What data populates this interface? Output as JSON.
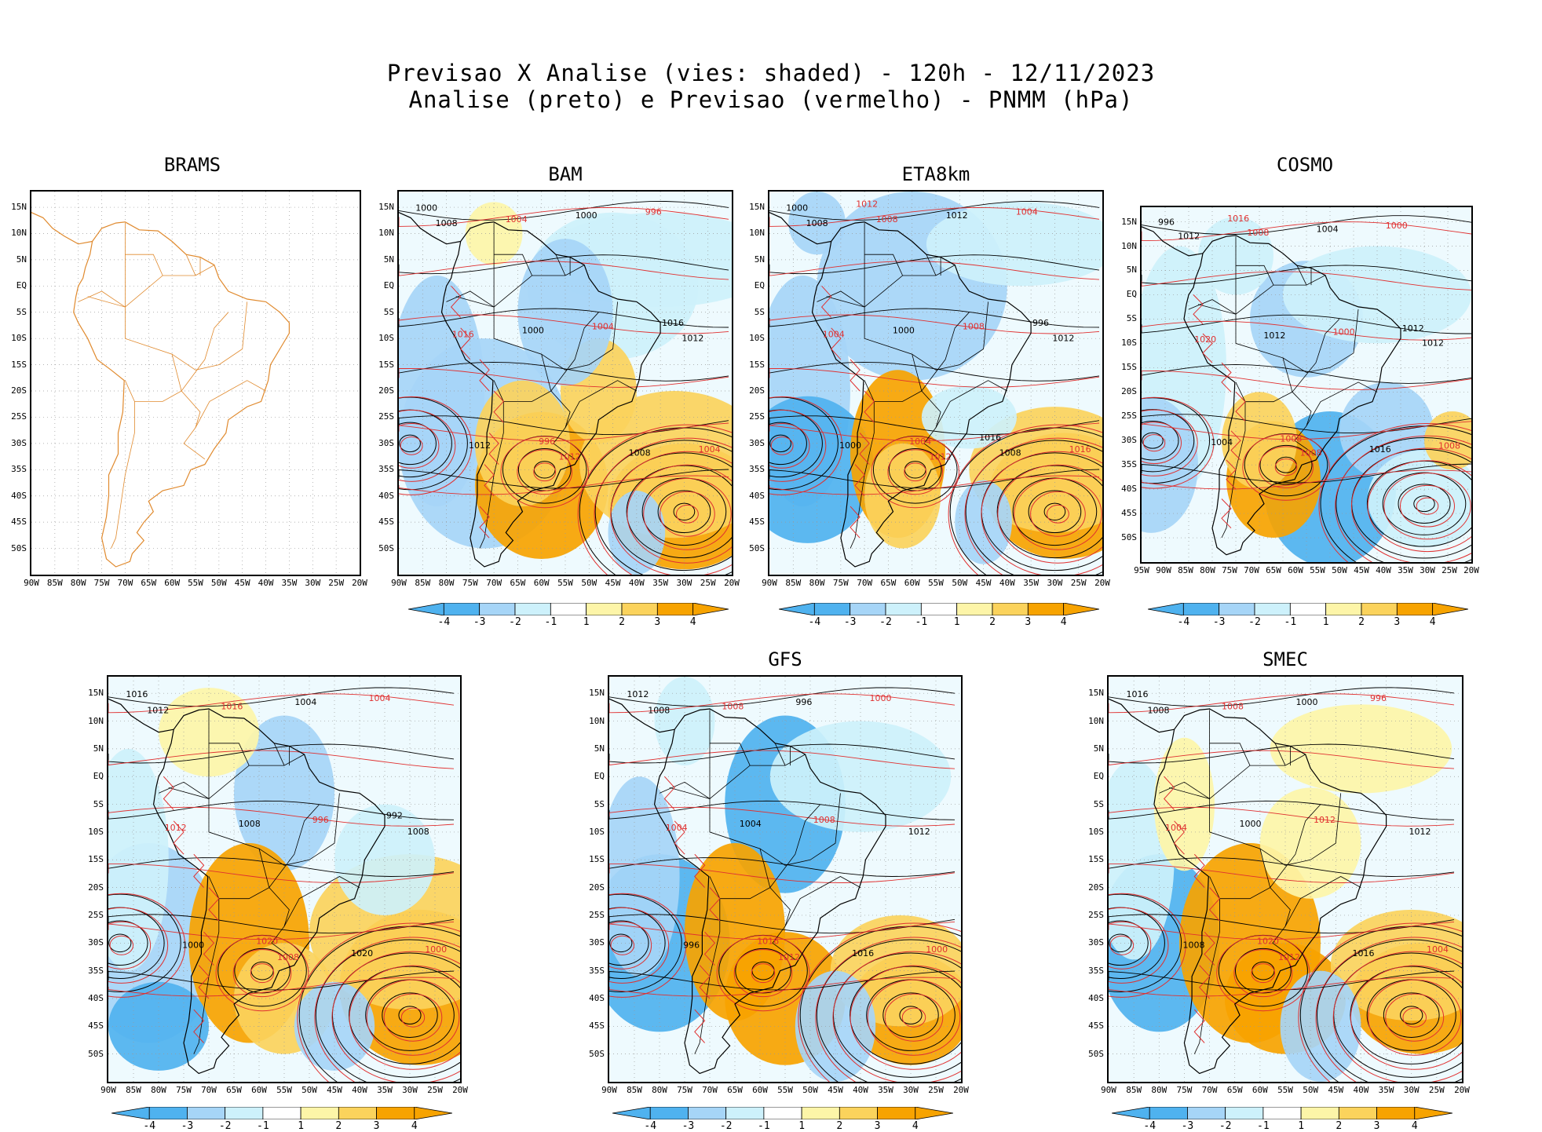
{
  "title_line1": "Previsao X Analise (vies: shaded) - 120h - 12/11/2023",
  "title_line2": "Analise (preto) e Previsao (vermelho) - PNMM (hPa)",
  "colors": {
    "shade_neg_strong": "#4fb2ef",
    "shade_neg_mid": "#a6d5f7",
    "shade_neg_light": "#cdf1fb",
    "shade_pos_light": "#fdf5a8",
    "shade_pos_mid": "#fbd35c",
    "shade_pos_strong": "#f7a300",
    "analysis_contour": "#000000",
    "forecast_contour": "#e03030",
    "coastline": "#e08a2e"
  },
  "colorbar_labels": [
    "-4",
    "-3",
    "-2",
    "-1",
    "1",
    "2",
    "3",
    "4"
  ],
  "lat_labels": [
    "15N",
    "10N",
    "5N",
    "EQ",
    "5S",
    "10S",
    "15S",
    "20S",
    "25S",
    "30S",
    "35S",
    "40S",
    "45S",
    "50S"
  ],
  "lon_labels_90": [
    "90W",
    "85W",
    "80W",
    "75W",
    "70W",
    "65W",
    "60W",
    "55W",
    "50W",
    "45W",
    "40W",
    "35W",
    "30W",
    "25W",
    "20W"
  ],
  "lon_labels_95": [
    "95W",
    "90W",
    "85W",
    "80W",
    "75W",
    "70W",
    "65W",
    "60W",
    "55W",
    "50W",
    "45W",
    "40W",
    "35W",
    "30W",
    "25W",
    "20W"
  ],
  "panels": [
    {
      "name": "BRAMS",
      "labels": []
    },
    {
      "name": "BAM",
      "labels": [
        "1008",
        "1012",
        "1012",
        "1004",
        "1008",
        "1016",
        "1000",
        "1004",
        "1000",
        "996",
        "1012",
        "1004",
        "1000",
        "996",
        "1016"
      ]
    },
    {
      "name": "ETA8km",
      "labels": [
        "1008",
        "1012",
        "1012",
        "1008",
        "1008",
        "1004",
        "1012",
        "1016",
        "1000",
        "1004",
        "1000",
        "1008",
        "1000",
        "1004",
        "996",
        "1012",
        "1016"
      ]
    },
    {
      "name": "COSMO",
      "labels": [
        "1012",
        "1008",
        "1012",
        "1008",
        "1016",
        "1020",
        "1004",
        "1008",
        "1012",
        "1000",
        "1004",
        "1000",
        "996",
        "1008",
        "1012",
        "1016"
      ]
    },
    {
      "name": "",
      "labels": [
        "1012",
        "1008",
        "1008",
        "1016",
        "1020",
        "1012",
        "1004",
        "1000",
        "1008",
        "1004",
        "1000",
        "996",
        "1016",
        "1020",
        "992"
      ]
    },
    {
      "name": "GFS",
      "labels": [
        "1008",
        "1012",
        "1012",
        "1008",
        "1016",
        "1004",
        "996",
        "1000",
        "1004",
        "1000",
        "996",
        "1008",
        "1012",
        "1016"
      ]
    },
    {
      "name": "SMEC",
      "labels": [
        "1008",
        "1012",
        "1012",
        "1008",
        "1016",
        "1004",
        "1000",
        "1004",
        "1000",
        "996",
        "1008",
        "1012",
        "1016",
        "1020"
      ]
    }
  ]
}
